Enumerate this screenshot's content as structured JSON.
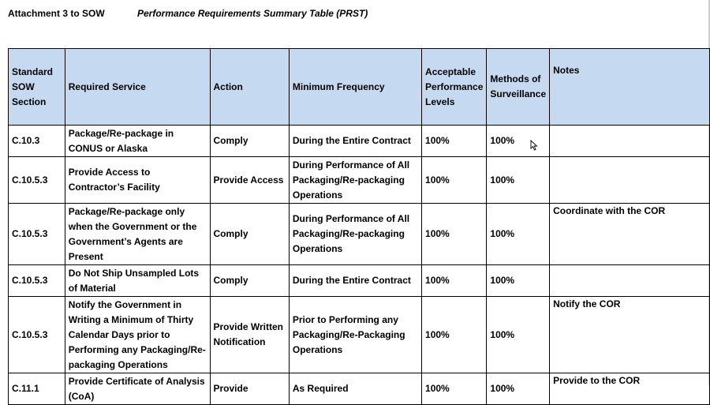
{
  "header": {
    "attachment": "Attachment 3 to SOW",
    "title": "Performance Requirements Summary Table (PRST)"
  },
  "columns": [
    "Standard SOW Section",
    "Required Service",
    "Action",
    "Minimum Frequency",
    "Acceptable Performance Levels",
    "Methods of Surveillance",
    "Notes"
  ],
  "rows": [
    {
      "section": "C.10.3",
      "service": "Package/Re-package in CONUS or Alaska",
      "action": "Comply",
      "frequency": "During the Entire Contract",
      "performance": "100%",
      "surveillance": "100%",
      "notes": ""
    },
    {
      "section": "C.10.5.3",
      "service": "Provide Access to Contractor’s Facility",
      "action": "Provide Access",
      "frequency": "During Performance of All Packaging/Re-packaging Operations",
      "performance": "100%",
      "surveillance": "100%",
      "notes": ""
    },
    {
      "section": "C.10.5.3",
      "service": "Package/Re-package only when the Government or the Government’s Agents are Present",
      "action": "Comply",
      "frequency": "During Performance of All Packaging/Re-packaging Operations",
      "performance": "100%",
      "surveillance": "100%",
      "notes": "Coordinate with the COR"
    },
    {
      "section": "C.10.5.3",
      "service": "Do Not Ship Unsampled Lots of Material",
      "action": "Comply",
      "frequency": "During the Entire Contract",
      "performance": "100%",
      "surveillance": "100%",
      "notes": ""
    },
    {
      "section": "C.10.5.3",
      "service": "Notify the Government in Writing a Minimum of Thirty Calendar Days prior to Performing any Packaging/Re-packaging Operations",
      "action": "Provide Written Notification",
      "frequency": "Prior to Performing any Packaging/Re-Packaging Operations",
      "performance": "100%",
      "surveillance": "100%",
      "notes": "Notify the COR"
    },
    {
      "section": "C.11.1",
      "service": "Provide Certificate of Analysis (CoA)",
      "action": "Provide",
      "frequency": "As Required",
      "performance": "100%",
      "surveillance": "100%",
      "notes": "Provide to the COR"
    }
  ]
}
